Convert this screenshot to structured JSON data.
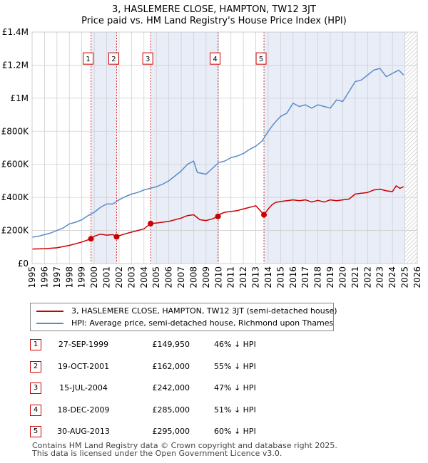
{
  "header": {
    "title": "3, HASLEMERE CLOSE, HAMPTON, TW12 3JT",
    "subtitle": "Price paid vs. HM Land Registry's House Price Index (HPI)"
  },
  "colors": {
    "property": "#cc0000",
    "hpi": "#5b8cc8",
    "shade": "#e8edf8",
    "hatch": "#bbbbbb"
  },
  "chart_data": {
    "type": "line",
    "title": "3, HASLEMERE CLOSE, HAMPTON, TW12 3JT",
    "subtitle": "Price paid vs. HM Land Registry's House Price Index (HPI)",
    "xlabel": "",
    "ylabel": "",
    "xlim": [
      1995,
      2026
    ],
    "ylim": [
      0,
      1400000
    ],
    "x_ticks": [
      "1995",
      "1996",
      "1997",
      "1998",
      "1999",
      "2000",
      "2001",
      "2002",
      "2003",
      "2004",
      "2005",
      "2006",
      "2007",
      "2008",
      "2009",
      "2010",
      "2011",
      "2012",
      "2013",
      "2014",
      "2015",
      "2016",
      "2017",
      "2018",
      "2019",
      "2020",
      "2021",
      "2022",
      "2023",
      "2024",
      "2025",
      "2026"
    ],
    "y_ticks": [
      {
        "value": 0,
        "label": "£0"
      },
      {
        "value": 200000,
        "label": "£200K"
      },
      {
        "value": 400000,
        "label": "£400K"
      },
      {
        "value": 600000,
        "label": "£600K"
      },
      {
        "value": 800000,
        "label": "£800K"
      },
      {
        "value": 1000000,
        "label": "£1M"
      },
      {
        "value": 1200000,
        "label": "£1.2M"
      },
      {
        "value": 1400000,
        "label": "£1.4M"
      }
    ],
    "grid": true,
    "future_hatch_start": 2025.0,
    "shaded_periods": [
      [
        1999.74,
        2001.8
      ],
      [
        2004.54,
        2009.96
      ],
      [
        2013.66,
        2025.0
      ]
    ],
    "series": [
      {
        "name": "3, HASLEMERE CLOSE, HAMPTON, TW12 3JT (semi-detached house)",
        "color": "#cc0000",
        "x": [
          1995,
          1996,
          1997,
          1998,
          1999,
          1999.74,
          2000,
          2000.5,
          2001,
          2001.5,
          2001.8,
          2002,
          2002.5,
          2003,
          2003.5,
          2004,
          2004.54,
          2005,
          2006,
          2006.5,
          2007,
          2007.5,
          2008,
          2008.5,
          2009,
          2009.5,
          2009.96,
          2010,
          2010.5,
          2011,
          2011.5,
          2012,
          2012.5,
          2013,
          2013.66,
          2014,
          2014.3,
          2014.6,
          2015,
          2016,
          2016.5,
          2017,
          2017.5,
          2018,
          2018.5,
          2019,
          2019.5,
          2020,
          2020.5,
          2021,
          2021.5,
          2022,
          2022.5,
          2023,
          2023.5,
          2024,
          2024.3,
          2024.6,
          2024.9
        ],
        "values": [
          88000,
          90000,
          95000,
          110000,
          130000,
          149950,
          165000,
          178000,
          172000,
          175000,
          162000,
          168000,
          180000,
          190000,
          200000,
          210000,
          242000,
          245000,
          255000,
          265000,
          275000,
          290000,
          295000,
          265000,
          260000,
          270000,
          285000,
          295000,
          310000,
          315000,
          320000,
          330000,
          340000,
          350000,
          295000,
          330000,
          355000,
          370000,
          375000,
          385000,
          380000,
          385000,
          372000,
          382000,
          372000,
          385000,
          380000,
          385000,
          390000,
          420000,
          425000,
          430000,
          445000,
          450000,
          440000,
          435000,
          470000,
          455000,
          465000
        ]
      },
      {
        "name": "HPI: Average price, semi-detached house, Richmond upon Thames",
        "color": "#5b8cc8",
        "x": [
          1995,
          1995.5,
          1996,
          1996.5,
          1997,
          1997.5,
          1998,
          1998.5,
          1999,
          1999.5,
          2000,
          2000.5,
          2001,
          2001.5,
          2002,
          2002.5,
          2003,
          2003.5,
          2004,
          2004.5,
          2005,
          2005.5,
          2006,
          2006.5,
          2007,
          2007.5,
          2008,
          2008.3,
          2008.7,
          2009,
          2009.5,
          2010,
          2010.5,
          2011,
          2011.5,
          2012,
          2012.5,
          2013,
          2013.5,
          2014,
          2014.5,
          2015,
          2015.5,
          2016,
          2016.5,
          2017,
          2017.5,
          2018,
          2018.5,
          2019,
          2019.5,
          2020,
          2020.5,
          2021,
          2021.5,
          2022,
          2022.5,
          2023,
          2023.5,
          2024,
          2024.5,
          2024.9
        ],
        "values": [
          160000,
          165000,
          175000,
          185000,
          200000,
          215000,
          240000,
          250000,
          265000,
          290000,
          310000,
          340000,
          360000,
          360000,
          385000,
          405000,
          420000,
          430000,
          445000,
          455000,
          465000,
          480000,
          500000,
          530000,
          560000,
          600000,
          620000,
          550000,
          545000,
          540000,
          575000,
          610000,
          620000,
          640000,
          650000,
          665000,
          690000,
          710000,
          740000,
          800000,
          850000,
          890000,
          910000,
          970000,
          950000,
          960000,
          940000,
          960000,
          950000,
          940000,
          990000,
          980000,
          1040000,
          1100000,
          1110000,
          1140000,
          1170000,
          1180000,
          1130000,
          1150000,
          1170000,
          1140000
        ]
      }
    ],
    "sales": [
      {
        "id": "1",
        "x": 1999.74,
        "price": 149950
      },
      {
        "id": "2",
        "x": 2001.8,
        "price": 162000
      },
      {
        "id": "3",
        "x": 2004.54,
        "price": 242000
      },
      {
        "id": "4",
        "x": 2009.96,
        "price": 285000
      },
      {
        "id": "5",
        "x": 2013.66,
        "price": 295000
      }
    ],
    "marker_label_value": 1240000
  },
  "legend": {
    "items": [
      {
        "label": "3, HASLEMERE CLOSE, HAMPTON, TW12 3JT (semi-detached house)",
        "color": "#cc0000"
      },
      {
        "label": "HPI: Average price, semi-detached house, Richmond upon Thames",
        "color": "#5b8cc8"
      }
    ]
  },
  "sales_table": [
    {
      "num": "1",
      "date": "27-SEP-1999",
      "price": "£149,950",
      "pct": "46% ↓ HPI"
    },
    {
      "num": "2",
      "date": "19-OCT-2001",
      "price": "£162,000",
      "pct": "55% ↓ HPI"
    },
    {
      "num": "3",
      "date": "15-JUL-2004",
      "price": "£242,000",
      "pct": "47% ↓ HPI"
    },
    {
      "num": "4",
      "date": "18-DEC-2009",
      "price": "£285,000",
      "pct": "51% ↓ HPI"
    },
    {
      "num": "5",
      "date": "30-AUG-2013",
      "price": "£295,000",
      "pct": "60% ↓ HPI"
    }
  ],
  "footer": {
    "line1": "Contains HM Land Registry data © Crown copyright and database right 2025.",
    "line2": "This data is licensed under the Open Government Licence v3.0."
  }
}
